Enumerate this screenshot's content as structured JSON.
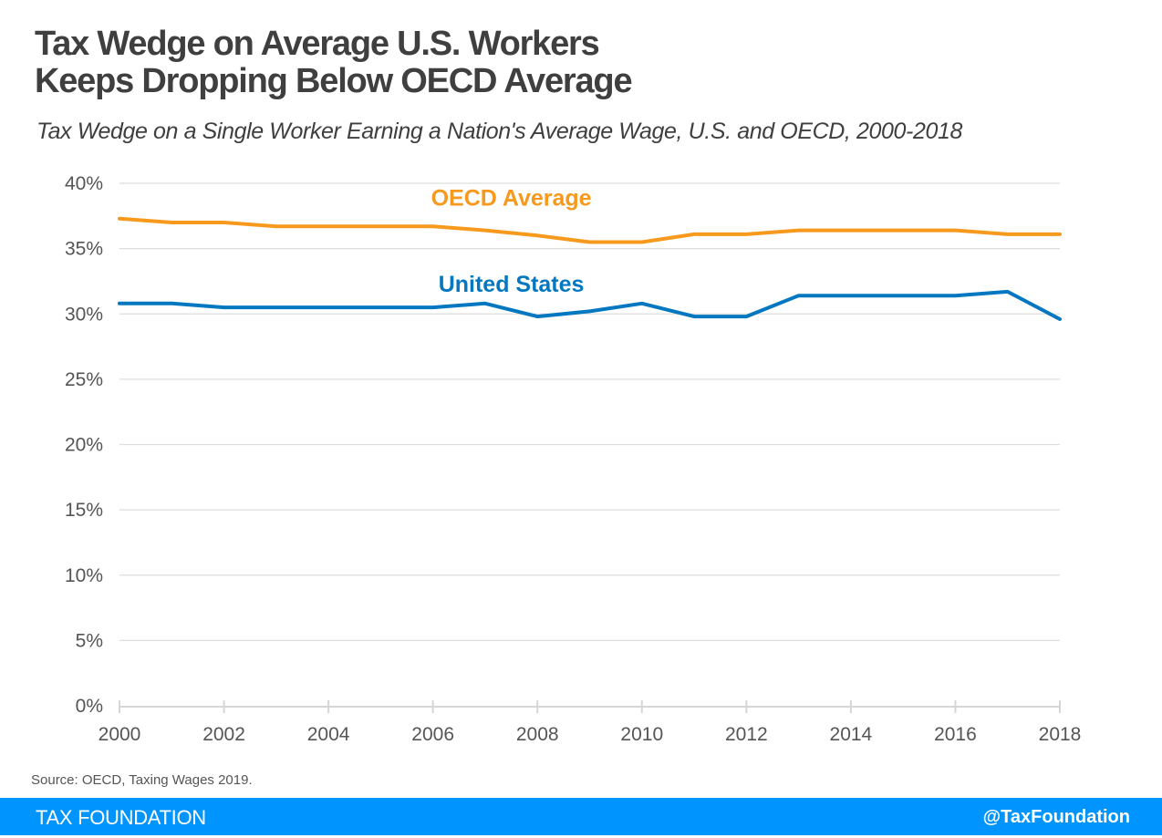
{
  "header": {
    "title_line1": "Tax Wedge on Average U.S. Workers",
    "title_line2": "Keeps Dropping Below OECD Average",
    "subtitle": "Tax Wedge on a Single Worker Earning a Nation's Average Wage, U.S. and OECD, 2000-2018"
  },
  "footer": {
    "source": "Source: OECD, Taxing Wages 2019.",
    "brand": "TAX FOUNDATION",
    "handle": "@TaxFoundation",
    "bar_color": "#0094ff"
  },
  "chart_data": {
    "type": "line",
    "title": "Tax Wedge on Average U.S. Workers Keeps Dropping Below OECD Average",
    "subtitle": "Tax Wedge on a Single Worker Earning a Nation's Average Wage, U.S. and OECD, 2000-2018",
    "xlabel": "",
    "ylabel": "",
    "x": [
      2000,
      2001,
      2002,
      2003,
      2004,
      2005,
      2006,
      2007,
      2008,
      2009,
      2010,
      2011,
      2012,
      2013,
      2014,
      2015,
      2016,
      2017,
      2018
    ],
    "x_ticks": [
      2000,
      2002,
      2004,
      2006,
      2008,
      2010,
      2012,
      2014,
      2016,
      2018
    ],
    "x_tick_labels": [
      "2000",
      "2002",
      "2004",
      "2006",
      "2008",
      "2010",
      "2012",
      "2014",
      "2016",
      "2018"
    ],
    "xlim": [
      2000,
      2018
    ],
    "y_ticks": [
      0,
      5,
      10,
      15,
      20,
      25,
      30,
      35,
      40
    ],
    "y_tick_labels": [
      "0%",
      "5%",
      "10%",
      "15%",
      "20%",
      "25%",
      "30%",
      "35%",
      "40%"
    ],
    "ylim": [
      0,
      40
    ],
    "grid": "horizontal",
    "legend": "inline-labels",
    "series": [
      {
        "name": "OECD Average",
        "color": "#f7991c",
        "label_anchor_year": 2007.5,
        "label_value": 38.3,
        "values": [
          37.3,
          37.0,
          37.0,
          36.7,
          36.7,
          36.7,
          36.7,
          36.4,
          36.0,
          35.5,
          35.5,
          36.1,
          36.1,
          36.4,
          36.4,
          36.4,
          36.4,
          36.1,
          36.1
        ]
      },
      {
        "name": "United States",
        "color": "#0477c1",
        "label_anchor_year": 2007.5,
        "label_value": 31.7,
        "values": [
          30.8,
          30.8,
          30.5,
          30.5,
          30.5,
          30.5,
          30.5,
          30.8,
          29.8,
          30.2,
          30.8,
          29.8,
          29.8,
          31.4,
          31.4,
          31.4,
          31.4,
          31.7,
          29.6
        ]
      }
    ]
  }
}
